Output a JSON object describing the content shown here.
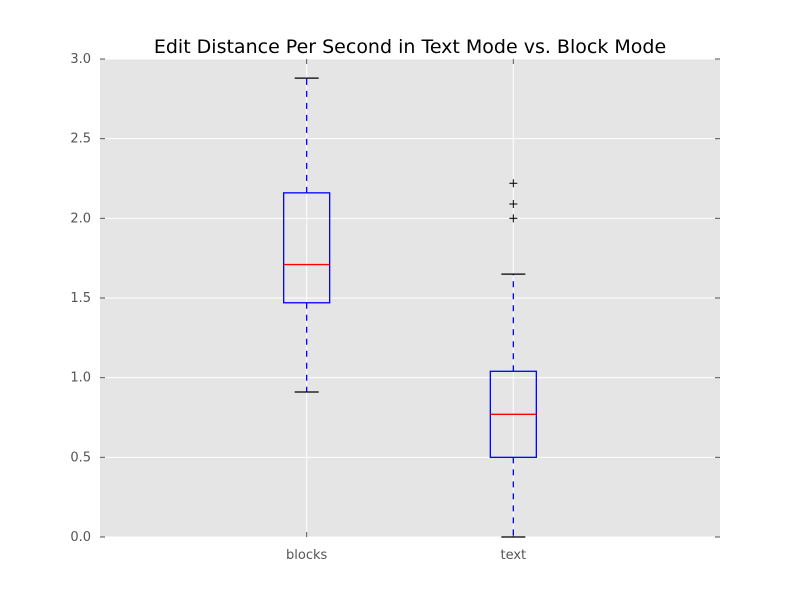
{
  "chart_data": {
    "type": "box",
    "title": "Edit Distance Per Second in Text Mode vs. Block Mode",
    "xlabel": "",
    "ylabel": "",
    "categories": [
      "blocks",
      "text"
    ],
    "ylim": [
      0,
      3.0
    ],
    "yticks": [
      "0.0",
      "0.5",
      "1.0",
      "1.5",
      "2.0",
      "2.5",
      "3.0"
    ],
    "ytick_values": [
      0,
      0.5,
      1.0,
      1.5,
      2.0,
      2.5,
      3.0
    ],
    "grid": true,
    "boxes": [
      {
        "name": "blocks",
        "whisker_low": 0.91,
        "q1": 1.47,
        "median": 1.71,
        "q3": 2.16,
        "whisker_high": 2.88,
        "outliers": []
      },
      {
        "name": "text",
        "whisker_low": 0.0,
        "q1": 0.5,
        "median": 0.77,
        "q3": 1.04,
        "whisker_high": 1.65,
        "outliers": [
          2.0,
          2.09,
          2.22
        ]
      }
    ],
    "colors": {
      "background": "#e5e5e5",
      "grid": "#ffffff",
      "box": "#0000ff",
      "median": "#ff0000",
      "whisker": "#0000ff",
      "cap": "#000000",
      "flier": "#000000"
    }
  }
}
